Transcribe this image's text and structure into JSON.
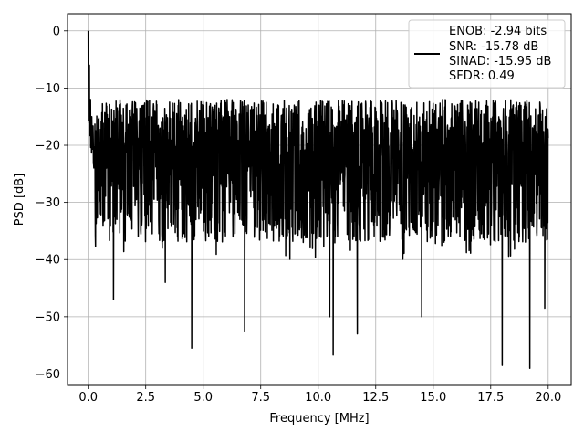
{
  "chart_data": {
    "type": "line",
    "title": "",
    "xlabel": "Frequency [MHz]",
    "ylabel": "PSD [dB]",
    "xlim": [
      -0.9,
      21.0
    ],
    "ylim": [
      -62.0,
      3.0
    ],
    "grid": true,
    "x_ticks": [
      {
        "value": 0.0,
        "label": "0.0"
      },
      {
        "value": 2.5,
        "label": "2.5"
      },
      {
        "value": 5.0,
        "label": "5.0"
      },
      {
        "value": 7.5,
        "label": "7.5"
      },
      {
        "value": 10.0,
        "label": "10.0"
      },
      {
        "value": 12.5,
        "label": "12.5"
      },
      {
        "value": 15.0,
        "label": "15.0"
      },
      {
        "value": 17.5,
        "label": "17.5"
      },
      {
        "value": 20.0,
        "label": "20.0"
      }
    ],
    "y_ticks": [
      {
        "value": 0,
        "label": "0"
      },
      {
        "value": -10,
        "label": "−10"
      },
      {
        "value": -20,
        "label": "−20"
      },
      {
        "value": -30,
        "label": "−30"
      },
      {
        "value": -40,
        "label": "−40"
      },
      {
        "value": -50,
        "label": "−50"
      },
      {
        "value": -60,
        "label": "−60"
      }
    ],
    "legend": {
      "placement": "top-right",
      "entries": [
        "ENOB: -2.94 bits",
        "SNR: -15.78 dB",
        "SINAD: -15.95 dB",
        "SFDR: 0.49"
      ]
    },
    "series": [
      {
        "color": "#000000",
        "x_start": 0.0,
        "x_end": 20.0,
        "noise_floor_mean": -25,
        "notable_points": [
          {
            "x": 0.0,
            "y": 0.0
          },
          {
            "x": 0.05,
            "y": -6.0
          },
          {
            "x": 0.1,
            "y": -12.0
          },
          {
            "x": 1.1,
            "y": -47.0
          },
          {
            "x": 3.35,
            "y": -44.0
          },
          {
            "x": 4.5,
            "y": -55.5
          },
          {
            "x": 6.8,
            "y": -52.5
          },
          {
            "x": 10.5,
            "y": -50.0
          },
          {
            "x": 10.65,
            "y": -56.7
          },
          {
            "x": 11.7,
            "y": -53.0
          },
          {
            "x": 14.5,
            "y": -50.0
          },
          {
            "x": 18.0,
            "y": -58.5
          },
          {
            "x": 19.2,
            "y": -59.0
          },
          {
            "x": 19.85,
            "y": -48.5
          }
        ]
      }
    ],
    "colors": {
      "line": "#000000",
      "grid": "#b0b0b0",
      "axes": "#000000",
      "background": "#ffffff"
    }
  }
}
